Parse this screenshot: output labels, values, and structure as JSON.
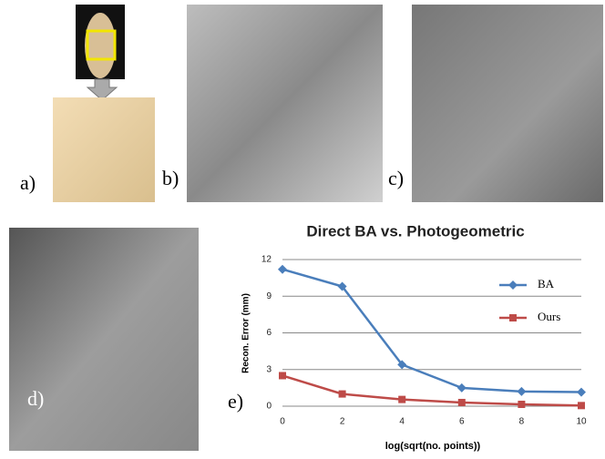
{
  "labels": [
    "a)",
    "b)",
    "c)",
    "d)",
    "e)"
  ],
  "chart_data": {
    "type": "line",
    "title": "Direct BA vs. Photogeometric",
    "x_label": "log(sqrt(no. points))",
    "y_label": "Recon. Error (mm)",
    "x": [
      0,
      2,
      4,
      6,
      8,
      10
    ],
    "series": [
      {
        "name": "BA",
        "color": "#4a7ebb",
        "marker": "diamond",
        "values": [
          11.2,
          9.8,
          3.4,
          1.5,
          1.2,
          1.15
        ]
      },
      {
        "name": "Ours",
        "color": "#be4b48",
        "marker": "square",
        "values": [
          2.5,
          1.0,
          0.55,
          0.3,
          0.15,
          0.05
        ]
      }
    ],
    "xlim": [
      0,
      10
    ],
    "xticks": [
      0,
      2,
      4,
      6,
      8,
      10
    ],
    "ylim": [
      0,
      12
    ],
    "yticks": [
      0,
      3,
      6,
      9,
      12
    ],
    "grid": true
  }
}
